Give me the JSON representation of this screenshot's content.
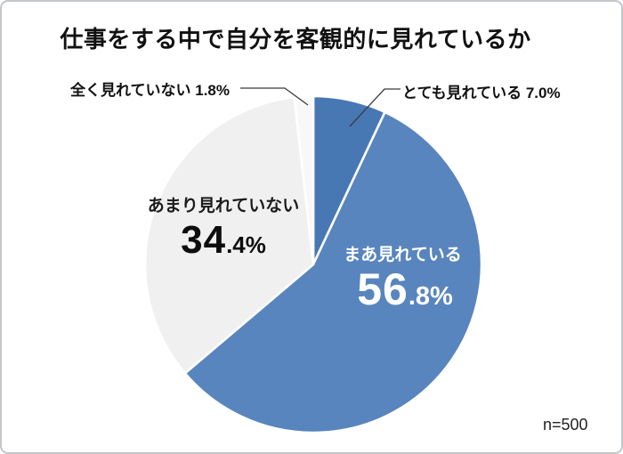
{
  "title": "仕事をする中で自分を客観的に見れているか",
  "sample_note": "n=500",
  "chart_data": {
    "type": "pie",
    "title": "仕事をする中で自分を客観的に見れているか",
    "categories": [
      "とても見れている",
      "まあ見れている",
      "あまり見れていない",
      "全く見れていない"
    ],
    "values": [
      7.0,
      56.8,
      34.4,
      1.8
    ],
    "colors": [
      "#4878b4",
      "#5885bd",
      "#f0f0f0",
      "#f8f8f8"
    ],
    "start_angle": "12-oclock",
    "direction": "clockwise",
    "slice_border_color": "#ffffff",
    "legend_position": "none",
    "sample_note": "n=500",
    "labels": {
      "callout_none": "全く見れていない 1.8%",
      "callout_very": "とても見れている 7.0%",
      "inside_gray_name": "あまり見れていない",
      "inside_gray_pct_big": "34",
      "inside_gray_pct_small": ".4%",
      "inside_blue_name": "まあ見れている",
      "inside_blue_pct_big": "56",
      "inside_blue_pct_small": ".8%"
    }
  }
}
